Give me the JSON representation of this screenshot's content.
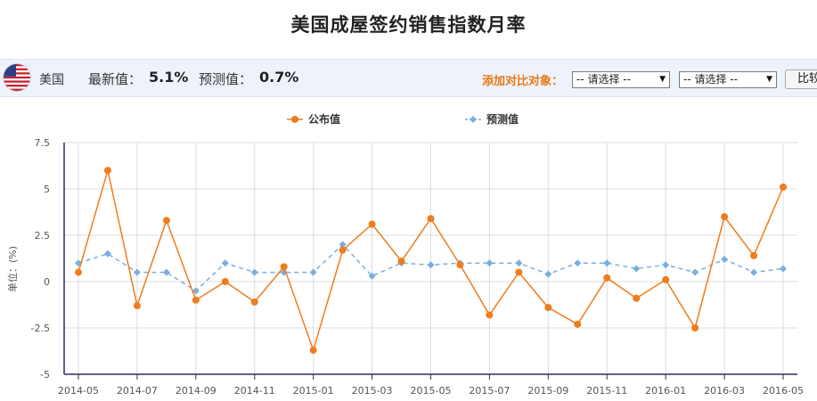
{
  "title": "美国成屋签约销售指数月率",
  "toolbar": {
    "country": "美国",
    "latest_label": "最新值：",
    "latest_value": "5.1%",
    "forecast_label": "预测值：",
    "forecast_value": "0.7%",
    "compare_label": "添加对比对象：",
    "select_placeholder_1": "-- 请选择 --",
    "select_placeholder_2": "-- 请选择 --",
    "compare_button": "比较",
    "flag_icon": "us-flag-icon"
  },
  "chart_data": {
    "type": "line",
    "ylabel": "单位：(%)",
    "ylim": [
      -5,
      7.5
    ],
    "yticks": [
      "7.5",
      "5",
      "2.5",
      "0",
      "-2.5",
      "-5"
    ],
    "ytick_values": [
      7.5,
      5,
      2.5,
      0,
      -2.5,
      -5
    ],
    "xtick_labels": [
      "2014-05",
      "2014-07",
      "2014-09",
      "2014-11",
      "2015-01",
      "2015-03",
      "2015-05",
      "2015-07",
      "2015-09",
      "2015-11",
      "2016-01",
      "2016-03",
      "2016-05"
    ],
    "x": [
      "2014-05",
      "2014-06",
      "2014-07",
      "2014-08",
      "2014-09",
      "2014-10",
      "2014-11",
      "2014-12",
      "2015-01",
      "2015-02",
      "2015-03",
      "2015-04",
      "2015-05",
      "2015-06",
      "2015-07",
      "2015-08",
      "2015-09",
      "2015-10",
      "2015-11",
      "2015-12",
      "2016-01",
      "2016-02",
      "2016-03",
      "2016-04",
      "2016-05"
    ],
    "grid": true,
    "legend_position": "top-center",
    "series": [
      {
        "name": "公布值",
        "color": "#f07c1c",
        "dashed": false,
        "values": [
          0.5,
          6.0,
          -1.3,
          3.3,
          -1.0,
          0.0,
          -1.1,
          0.8,
          -3.7,
          1.7,
          3.1,
          1.1,
          3.4,
          0.9,
          -1.8,
          0.5,
          -1.4,
          -2.3,
          0.2,
          -0.9,
          0.1,
          -2.5,
          3.5,
          1.4,
          5.1
        ]
      },
      {
        "name": "预测值",
        "color": "#7aaee0",
        "dashed": true,
        "values": [
          1.0,
          1.5,
          0.5,
          0.5,
          -0.5,
          1.0,
          0.5,
          0.5,
          0.5,
          2.0,
          0.3,
          1.0,
          0.9,
          1.0,
          1.0,
          1.0,
          0.4,
          1.0,
          1.0,
          0.7,
          0.9,
          0.5,
          1.2,
          0.5,
          0.7
        ]
      }
    ]
  }
}
